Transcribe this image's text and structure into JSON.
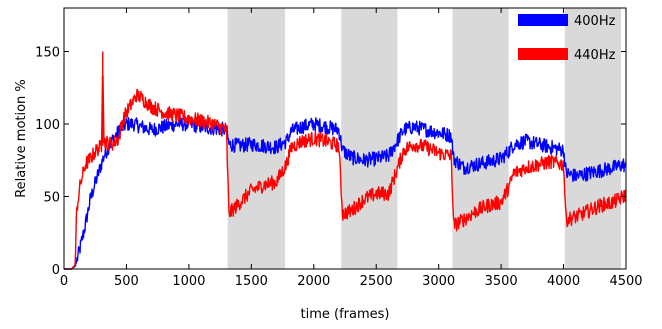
{
  "chart_data": {
    "type": "line",
    "title": "",
    "xlabel": "time (frames)",
    "ylabel": "Relative motion  %",
    "xlim": [
      0,
      4500
    ],
    "ylim": [
      0,
      180
    ],
    "xticks": [
      0,
      500,
      1000,
      1500,
      2000,
      2500,
      3000,
      3500,
      4000,
      4500
    ],
    "yticks": [
      0,
      50,
      100,
      150
    ],
    "ytick_labels": [
      "0",
      "50",
      "100",
      "150"
    ],
    "grid": false,
    "legend_position": "top-right",
    "shaded_regions": [
      [
        1310,
        1770
      ],
      [
        2220,
        2670
      ],
      [
        3110,
        3560
      ],
      [
        4010,
        4460
      ]
    ],
    "shade_color": "#d9d9d9",
    "series": [
      {
        "name": "400Hz",
        "color": "#0000ff",
        "x": [
          0,
          60,
          90,
          100,
          130,
          170,
          210,
          260,
          320,
          380,
          440,
          500,
          560,
          620,
          700,
          800,
          900,
          1000,
          1100,
          1200,
          1300,
          1320,
          1400,
          1500,
          1600,
          1700,
          1780,
          1820,
          1900,
          2000,
          2100,
          2200,
          2230,
          2300,
          2400,
          2500,
          2600,
          2680,
          2720,
          2800,
          2900,
          3000,
          3100,
          3120,
          3200,
          3300,
          3400,
          3500,
          3570,
          3600,
          3700,
          3800,
          3900,
          4000,
          4020,
          4100,
          4200,
          4300,
          4400,
          4480,
          4500
        ],
        "y": [
          0,
          0,
          2,
          5,
          15,
          30,
          48,
          62,
          78,
          88,
          95,
          100,
          100,
          98,
          96,
          98,
          100,
          100,
          98,
          97,
          96,
          86,
          85,
          86,
          85,
          84,
          88,
          95,
          98,
          100,
          98,
          96,
          82,
          77,
          75,
          76,
          78,
          90,
          96,
          98,
          96,
          94,
          92,
          76,
          70,
          72,
          74,
          76,
          82,
          86,
          88,
          86,
          84,
          82,
          66,
          64,
          66,
          68,
          70,
          72,
          70
        ]
      },
      {
        "name": "440Hz",
        "color": "#ff0000",
        "x": [
          0,
          60,
          90,
          100,
          130,
          170,
          210,
          260,
          300,
          310,
          320,
          380,
          440,
          460,
          500,
          550,
          580,
          620,
          700,
          800,
          900,
          1000,
          1100,
          1200,
          1300,
          1320,
          1400,
          1500,
          1600,
          1700,
          1780,
          1820,
          1900,
          2000,
          2100,
          2200,
          2230,
          2300,
          2400,
          2500,
          2600,
          2680,
          2720,
          2800,
          2900,
          3000,
          3100,
          3120,
          3200,
          3300,
          3400,
          3500,
          3570,
          3600,
          3700,
          3800,
          3900,
          4000,
          4020,
          4100,
          4200,
          4300,
          4400,
          4480,
          4500
        ],
        "y": [
          0,
          0,
          3,
          40,
          58,
          72,
          76,
          82,
          85,
          150,
          88,
          86,
          90,
          100,
          108,
          115,
          120,
          118,
          112,
          108,
          106,
          104,
          102,
          100,
          96,
          38,
          45,
          54,
          58,
          60,
          72,
          84,
          88,
          90,
          88,
          85,
          38,
          40,
          48,
          52,
          52,
          72,
          82,
          86,
          84,
          80,
          78,
          30,
          34,
          40,
          44,
          46,
          58,
          66,
          70,
          72,
          74,
          72,
          34,
          36,
          40,
          44,
          46,
          50,
          52
        ]
      }
    ]
  }
}
